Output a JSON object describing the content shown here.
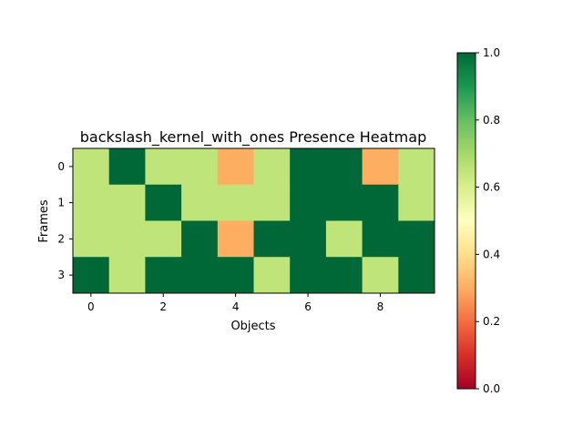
{
  "chart_data": {
    "type": "heatmap",
    "title": "backslash_kernel_with_ones Presence Heatmap",
    "xlabel": "Objects",
    "ylabel": "Frames",
    "x_ticks": [
      0,
      2,
      4,
      6,
      8
    ],
    "y_ticks": [
      0,
      1,
      2,
      3
    ],
    "rows": 4,
    "cols": 10,
    "values": [
      [
        0.65,
        1.0,
        0.65,
        0.65,
        0.3,
        0.65,
        1.0,
        1.0,
        0.3,
        0.65
      ],
      [
        0.65,
        0.65,
        1.0,
        0.65,
        0.65,
        0.65,
        1.0,
        1.0,
        1.0,
        0.65
      ],
      [
        0.65,
        0.65,
        0.65,
        1.0,
        0.3,
        1.0,
        1.0,
        0.65,
        1.0,
        1.0
      ],
      [
        1.0,
        0.65,
        1.0,
        1.0,
        1.0,
        0.65,
        1.0,
        1.0,
        0.65,
        1.0
      ]
    ],
    "colormap": "RdYlGn",
    "vmin": 0.0,
    "vmax": 1.0,
    "colorbar_ticks": [
      "0.0",
      "0.2",
      "0.4",
      "0.6",
      "0.8",
      "1.0"
    ],
    "colors": {
      "high": "#006837",
      "mid_high": "#b7e075",
      "mid": "#fefebd",
      "mid_low": "#fdbf6f",
      "low": "#a50026"
    }
  }
}
